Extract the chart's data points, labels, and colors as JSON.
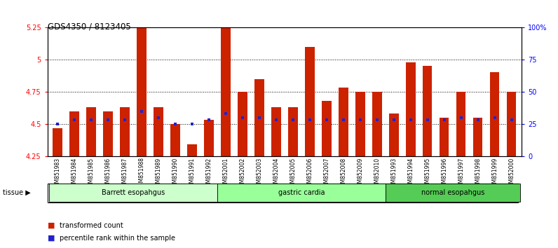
{
  "title": "GDS4350 / 8123405",
  "samples": [
    "GSM851983",
    "GSM851984",
    "GSM851985",
    "GSM851986",
    "GSM851987",
    "GSM851988",
    "GSM851989",
    "GSM851990",
    "GSM851991",
    "GSM851992",
    "GSM852001",
    "GSM852002",
    "GSM852003",
    "GSM852004",
    "GSM852005",
    "GSM852006",
    "GSM852007",
    "GSM852008",
    "GSM852009",
    "GSM852010",
    "GSM851993",
    "GSM851994",
    "GSM851995",
    "GSM851996",
    "GSM851997",
    "GSM851998",
    "GSM851999",
    "GSM852000"
  ],
  "bar_values": [
    4.47,
    4.6,
    4.63,
    4.6,
    4.63,
    5.25,
    4.63,
    4.5,
    4.34,
    4.53,
    5.25,
    4.75,
    4.85,
    4.63,
    4.63,
    5.1,
    4.68,
    4.78,
    4.75,
    4.75,
    4.58,
    4.98,
    4.95,
    4.55,
    4.75,
    4.55,
    4.9,
    4.75
  ],
  "percentile_values": [
    4.5,
    4.53,
    4.53,
    4.53,
    4.53,
    4.6,
    4.55,
    4.5,
    4.5,
    4.53,
    4.58,
    4.55,
    4.55,
    4.53,
    4.53,
    4.53,
    4.53,
    4.53,
    4.53,
    4.53,
    4.53,
    4.53,
    4.53,
    4.53,
    4.55,
    4.53,
    4.55,
    4.53
  ],
  "groups": [
    {
      "label": "Barrett esopahgus",
      "start": 0,
      "end": 9,
      "color": "#ccffcc"
    },
    {
      "label": "gastric cardia",
      "start": 10,
      "end": 19,
      "color": "#99ff99"
    },
    {
      "label": "normal esopahgus",
      "start": 20,
      "end": 27,
      "color": "#55cc55"
    }
  ],
  "bar_color": "#cc2200",
  "dot_color": "#2222cc",
  "ylim_left": [
    4.25,
    5.25
  ],
  "ylim_right": [
    0,
    100
  ],
  "yticks_left": [
    4.25,
    4.5,
    4.75,
    5.0,
    5.25
  ],
  "yticks_right": [
    0,
    25,
    50,
    75,
    100
  ],
  "ytick_labels_left": [
    "4.25",
    "4.5",
    "4.75",
    "5",
    "5.25"
  ],
  "ytick_labels_right": [
    "0",
    "25",
    "50",
    "75",
    "100%"
  ],
  "grid_values": [
    4.5,
    4.75,
    5.0
  ],
  "plot_bg": "#ffffff",
  "legend_items": [
    {
      "color": "#cc2200",
      "label": "transformed count"
    },
    {
      "color": "#2222cc",
      "label": "percentile rank within the sample"
    }
  ]
}
